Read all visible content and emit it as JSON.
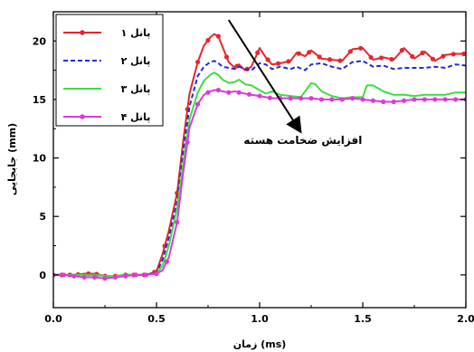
{
  "chart_data": {
    "type": "line",
    "title": "",
    "xlabel": "زمان (ms)",
    "ylabel": "جابجایی (mm)",
    "xlim": [
      0.0,
      2.0
    ],
    "ylim": [
      -2.8,
      22.5
    ],
    "xticks": [
      0.0,
      0.5,
      1.0,
      1.5,
      2.0
    ],
    "xtick_labels": [
      "0.0",
      "0.5",
      "1.0",
      "1.5",
      "2.0"
    ],
    "yticks": [
      0,
      5,
      10,
      15,
      20
    ],
    "ytick_labels": [
      "0",
      "5",
      "10",
      "15",
      "20"
    ],
    "grid": false,
    "legend_position": "top-left",
    "annotation": {
      "text": "افزایش ضخامت هسته",
      "arrow_from": [
        0.85,
        21.8
      ],
      "arrow_to": [
        1.2,
        12.2
      ],
      "text_at": [
        1.21,
        11.2
      ]
    },
    "series": [
      {
        "name": "پانل ۱",
        "color": "#e8262b",
        "line_style": "solid",
        "marker": "circle",
        "x": [
          0.0,
          0.05,
          0.1,
          0.15,
          0.2,
          0.25,
          0.3,
          0.35,
          0.4,
          0.45,
          0.5,
          0.53,
          0.56,
          0.6,
          0.63,
          0.66,
          0.7,
          0.73,
          0.76,
          0.78,
          0.8,
          0.82,
          0.85,
          0.88,
          0.9,
          0.93,
          0.96,
          1.0,
          1.03,
          1.06,
          1.1,
          1.15,
          1.18,
          1.22,
          1.25,
          1.3,
          1.35,
          1.4,
          1.45,
          1.5,
          1.55,
          1.6,
          1.65,
          1.7,
          1.75,
          1.8,
          1.85,
          1.9,
          1.95,
          2.0
        ],
        "y": [
          0.0,
          0.0,
          0.0,
          0.1,
          0.1,
          -0.1,
          -0.1,
          0.0,
          0.0,
          0.0,
          0.3,
          1.8,
          3.8,
          7.0,
          11.5,
          15.5,
          18.2,
          19.6,
          20.3,
          20.6,
          20.4,
          19.5,
          18.2,
          17.7,
          18.0,
          17.5,
          17.8,
          19.4,
          18.6,
          18.0,
          18.1,
          18.3,
          19.0,
          18.7,
          19.2,
          18.5,
          18.4,
          18.3,
          19.3,
          19.4,
          18.4,
          18.6,
          18.4,
          19.4,
          18.5,
          19.1,
          18.3,
          18.8,
          18.9,
          18.9
        ],
        "marker_x": [
          0.0,
          0.04,
          0.08,
          0.12,
          0.17,
          0.21,
          0.25,
          0.3,
          0.35,
          0.39,
          0.44,
          0.49,
          0.54,
          0.6,
          0.65,
          0.7,
          0.75,
          0.8,
          0.84,
          0.89,
          0.94,
          0.99,
          1.04,
          1.09,
          1.14,
          1.19,
          1.24,
          1.29,
          1.34,
          1.39,
          1.44,
          1.49,
          1.54,
          1.59,
          1.64,
          1.69,
          1.74,
          1.79,
          1.84,
          1.89,
          1.94,
          1.99
        ]
      },
      {
        "name": "پانل ۲",
        "color": "#1b2fd6",
        "line_style": "dashed",
        "marker": "none",
        "x": [
          0.0,
          0.05,
          0.1,
          0.15,
          0.2,
          0.25,
          0.3,
          0.35,
          0.4,
          0.45,
          0.5,
          0.53,
          0.56,
          0.6,
          0.63,
          0.66,
          0.7,
          0.73,
          0.76,
          0.78,
          0.8,
          0.82,
          0.85,
          0.88,
          0.9,
          0.93,
          0.96,
          1.0,
          1.03,
          1.06,
          1.1,
          1.15,
          1.18,
          1.22,
          1.25,
          1.3,
          1.35,
          1.4,
          1.45,
          1.5,
          1.55,
          1.6,
          1.65,
          1.7,
          1.75,
          1.8,
          1.85,
          1.9,
          1.95,
          2.0
        ],
        "y": [
          0.0,
          0.0,
          0.0,
          0.0,
          0.0,
          -0.1,
          -0.1,
          0.0,
          0.0,
          0.0,
          0.2,
          1.3,
          3.2,
          6.3,
          10.6,
          14.4,
          17.0,
          17.8,
          18.2,
          18.3,
          18.1,
          17.8,
          17.7,
          17.6,
          17.8,
          17.6,
          17.5,
          18.1,
          18.0,
          17.6,
          17.8,
          17.6,
          17.8,
          17.5,
          18.0,
          18.1,
          17.8,
          17.6,
          18.2,
          18.3,
          17.8,
          17.9,
          17.6,
          17.7,
          17.7,
          17.7,
          17.8,
          17.7,
          18.0,
          17.9
        ]
      },
      {
        "name": "پانل ۳",
        "color": "#3fdc3f",
        "line_style": "solid",
        "marker": "none",
        "x": [
          0.0,
          0.05,
          0.1,
          0.15,
          0.2,
          0.25,
          0.3,
          0.35,
          0.4,
          0.45,
          0.5,
          0.53,
          0.56,
          0.6,
          0.63,
          0.66,
          0.7,
          0.73,
          0.76,
          0.78,
          0.8,
          0.82,
          0.85,
          0.88,
          0.9,
          0.93,
          0.96,
          1.0,
          1.03,
          1.06,
          1.1,
          1.15,
          1.2,
          1.25,
          1.27,
          1.3,
          1.35,
          1.4,
          1.45,
          1.5,
          1.52,
          1.55,
          1.6,
          1.65,
          1.7,
          1.75,
          1.8,
          1.85,
          1.9,
          1.95,
          2.0
        ],
        "y": [
          0.0,
          0.0,
          0.0,
          0.0,
          0.0,
          -0.1,
          -0.1,
          0.0,
          0.0,
          0.0,
          0.1,
          0.8,
          2.5,
          5.7,
          9.6,
          13.3,
          15.6,
          16.6,
          17.1,
          17.3,
          17.1,
          16.7,
          16.4,
          16.5,
          16.7,
          16.3,
          16.2,
          15.8,
          15.5,
          15.7,
          15.4,
          15.3,
          15.2,
          16.4,
          16.3,
          15.7,
          15.3,
          15.1,
          15.2,
          15.2,
          16.2,
          16.2,
          15.7,
          15.4,
          15.4,
          15.3,
          15.4,
          15.4,
          15.4,
          15.6,
          15.6
        ]
      },
      {
        "name": "پانل ۴",
        "color": "#dd3ad9",
        "line_style": "solid",
        "marker": "circle",
        "x": [
          0.0,
          0.05,
          0.1,
          0.15,
          0.2,
          0.25,
          0.3,
          0.35,
          0.4,
          0.45,
          0.5,
          0.53,
          0.56,
          0.6,
          0.63,
          0.66,
          0.7,
          0.73,
          0.76,
          0.78,
          0.8,
          0.82,
          0.85,
          0.88,
          0.9,
          0.93,
          0.96,
          1.0,
          1.03,
          1.06,
          1.1,
          1.15,
          1.2,
          1.25,
          1.3,
          1.35,
          1.4,
          1.45,
          1.5,
          1.55,
          1.6,
          1.65,
          1.7,
          1.75,
          1.8,
          1.85,
          1.9,
          1.95,
          2.0
        ],
        "y": [
          0.0,
          0.0,
          -0.1,
          -0.2,
          -0.2,
          -0.3,
          -0.2,
          -0.1,
          0.0,
          0.0,
          0.1,
          0.4,
          1.5,
          4.5,
          8.8,
          12.6,
          14.6,
          15.4,
          15.7,
          15.8,
          15.8,
          15.7,
          15.6,
          15.7,
          15.6,
          15.5,
          15.4,
          15.3,
          15.2,
          15.1,
          15.1,
          15.1,
          15.1,
          15.1,
          15.0,
          15.0,
          15.0,
          15.1,
          15.0,
          14.9,
          14.8,
          14.8,
          14.9,
          15.0,
          15.0,
          15.0,
          15.0,
          15.0,
          15.0
        ],
        "marker_x": [
          0.0,
          0.05,
          0.1,
          0.15,
          0.2,
          0.25,
          0.3,
          0.35,
          0.4,
          0.45,
          0.5,
          0.55,
          0.6,
          0.65,
          0.7,
          0.75,
          0.8,
          0.85,
          0.9,
          0.95,
          1.0,
          1.05,
          1.1,
          1.15,
          1.2,
          1.25,
          1.3,
          1.35,
          1.4,
          1.45,
          1.5,
          1.55,
          1.6,
          1.65,
          1.7,
          1.75,
          1.8,
          1.85,
          1.9,
          1.95,
          2.0
        ]
      }
    ]
  }
}
